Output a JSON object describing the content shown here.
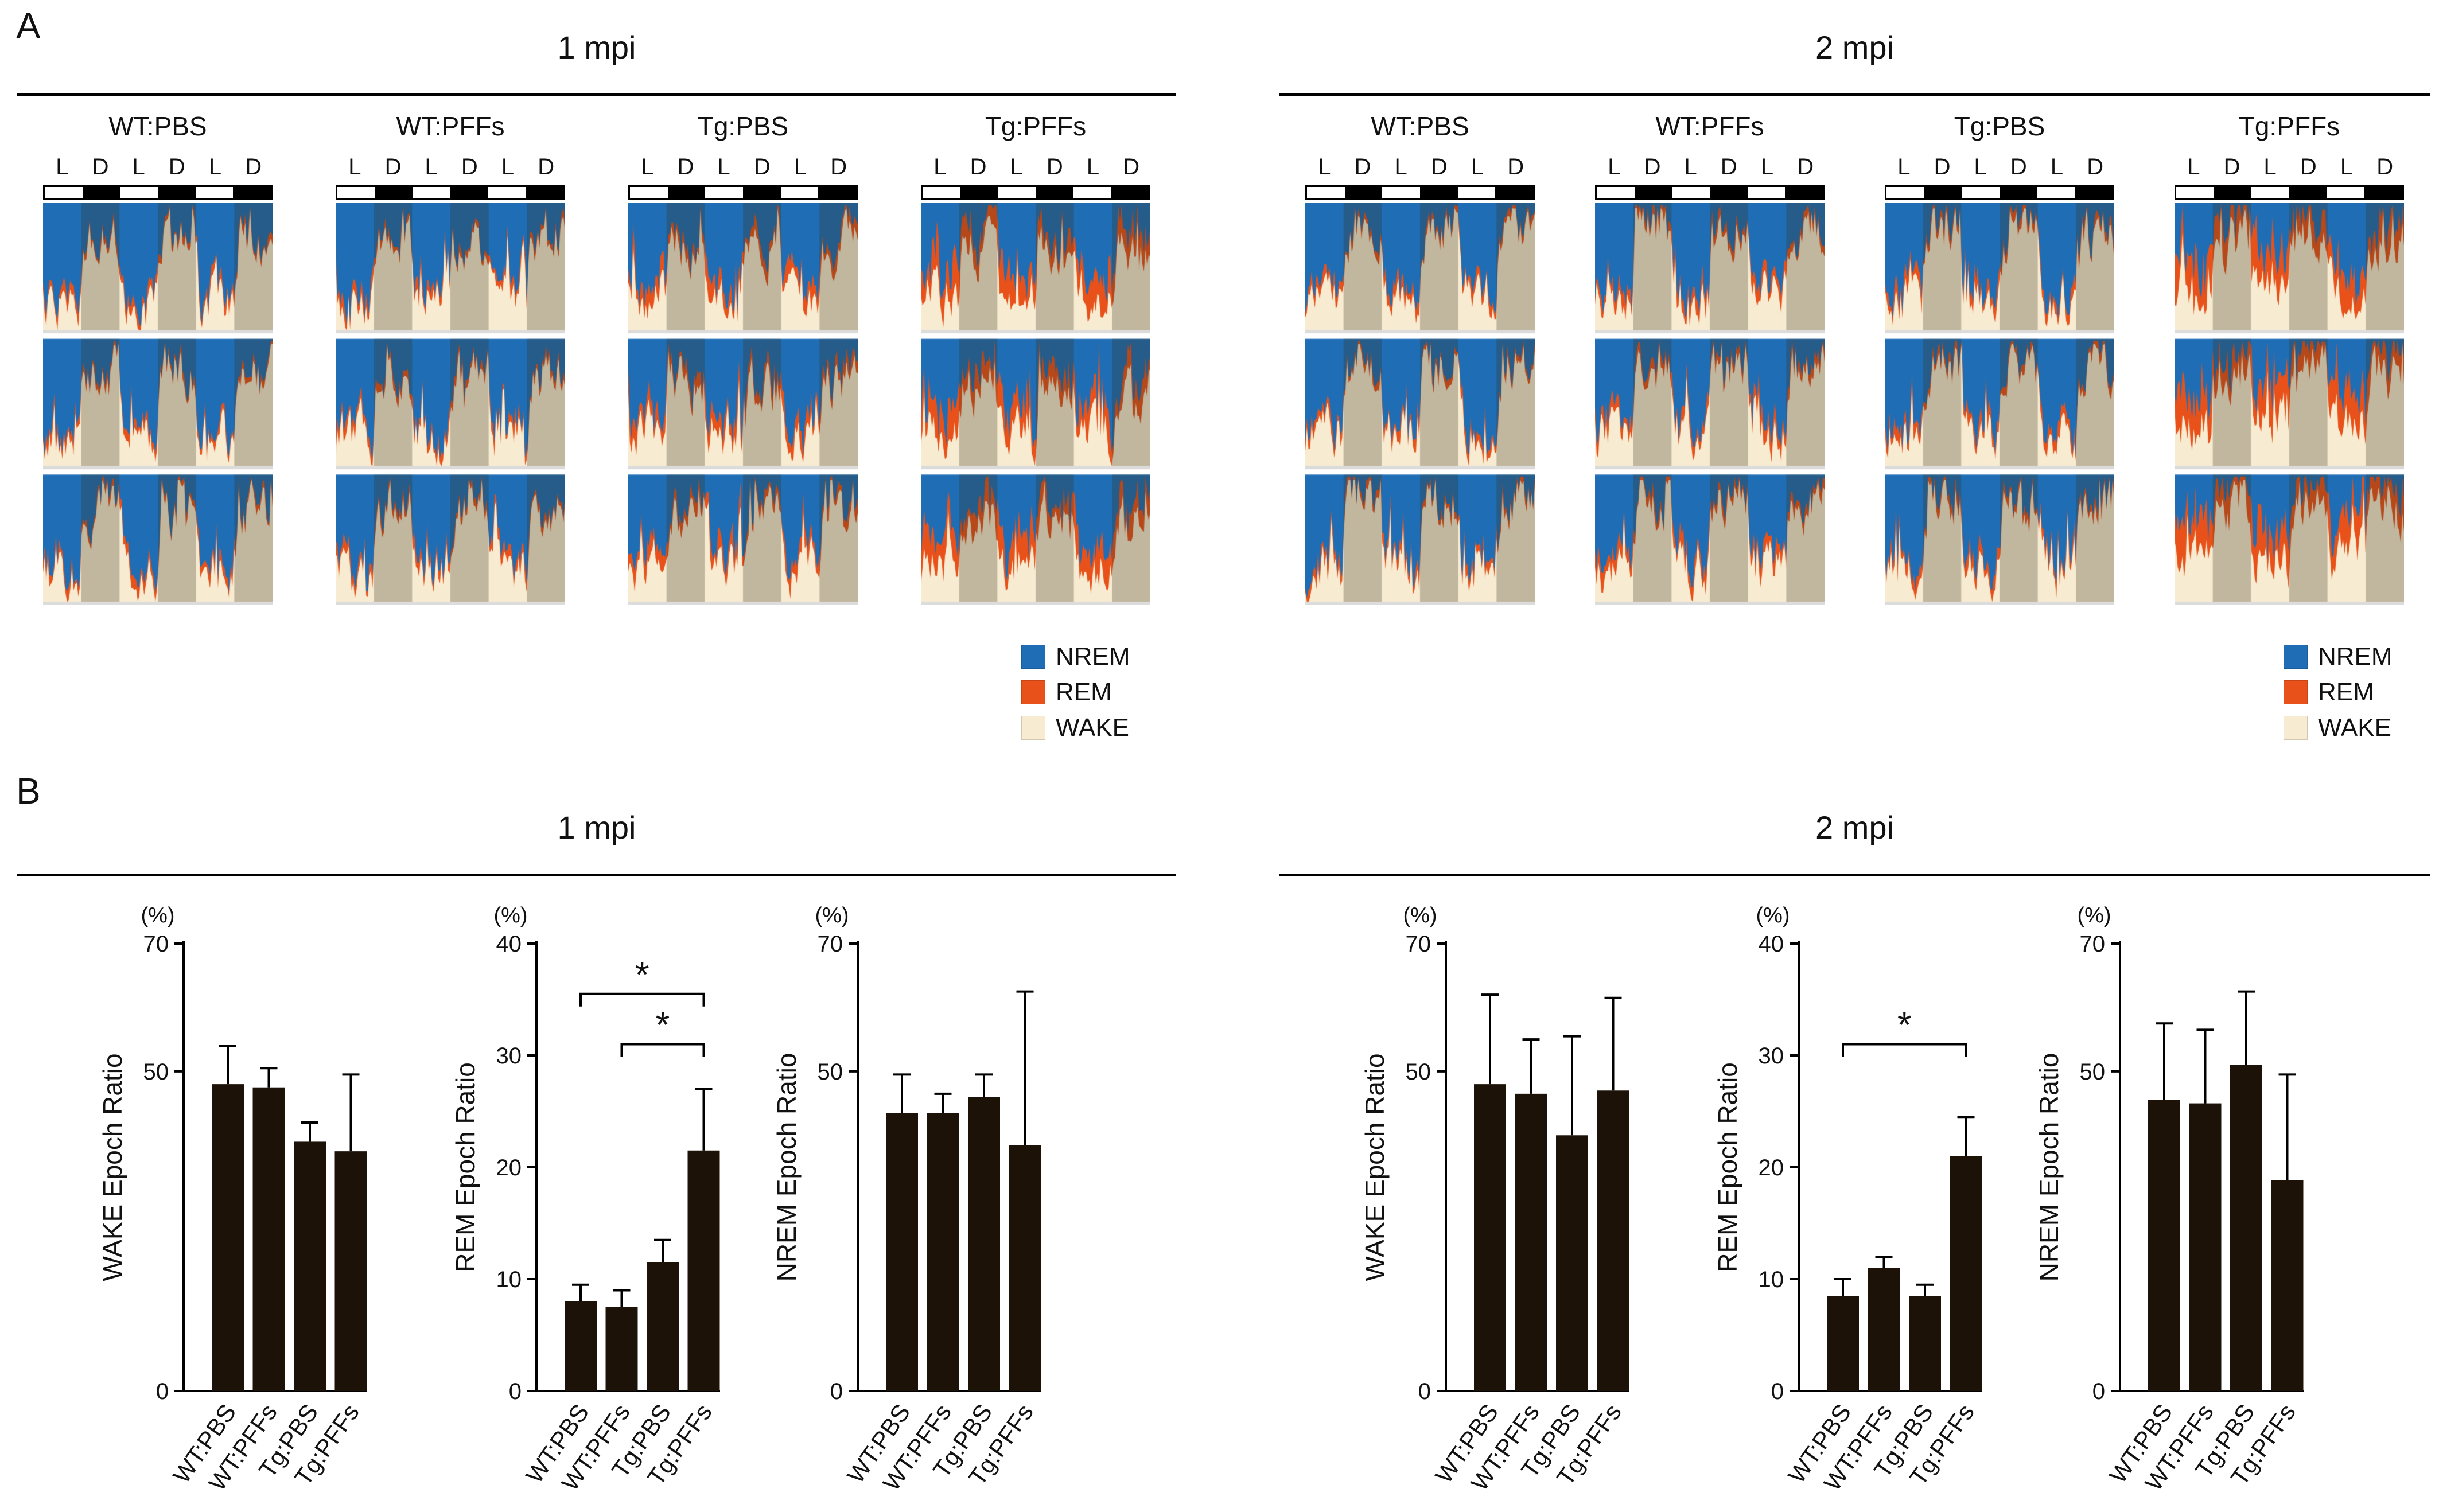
{
  "figure": {
    "panel_a_label": "A",
    "panel_b_label": "B",
    "sections": [
      "1 mpi",
      "2 mpi"
    ],
    "groups": [
      "WT:PBS",
      "WT:PFFs",
      "Tg:PBS",
      "Tg:PFFs"
    ],
    "light_dark_labels": [
      "L",
      "D",
      "L",
      "D",
      "L",
      "D"
    ],
    "legend": [
      {
        "label": "NREM",
        "color": "#1f6eb5"
      },
      {
        "label": "REM",
        "color": "#e8521a"
      },
      {
        "label": "WAKE",
        "color": "#f7ecd2"
      }
    ]
  },
  "colors": {
    "nrem": "#1f6eb5",
    "rem": "#e8521a",
    "wake": "#f7ecd2",
    "bar": "#1d1208",
    "dark_band_overlay": "rgba(55,45,30,0.28)",
    "row_baseline": "#dcdcdc"
  },
  "chart_data": [
    {
      "id": "hypnograms-1mpi",
      "panel": "A",
      "section": "1 mpi",
      "type": "area",
      "stack_order_bottom_to_top": [
        "WAKE",
        "REM",
        "NREM"
      ],
      "x_axis": "time, 3 days (alternating 12 h light / 12 h dark)",
      "y_axis": "epoch composition (stacked fraction)",
      "rows_per_group": 3,
      "periods": [
        "L",
        "D",
        "L",
        "D",
        "L",
        "D"
      ],
      "groups": [
        {
          "label": "WT:PBS",
          "seed": 11,
          "wake_light": 0.22,
          "wake_dark": 0.74,
          "rem_level": 0.055
        },
        {
          "label": "WT:PFFs",
          "seed": 23,
          "wake_light": 0.25,
          "wake_dark": 0.7,
          "rem_level": 0.06
        },
        {
          "label": "Tg:PBS",
          "seed": 37,
          "wake_light": 0.28,
          "wake_dark": 0.66,
          "rem_level": 0.1
        },
        {
          "label": "Tg:PFFs",
          "seed": 49,
          "wake_light": 0.3,
          "wake_dark": 0.62,
          "rem_level": 0.18
        }
      ]
    },
    {
      "id": "hypnograms-2mpi",
      "panel": "A",
      "section": "2 mpi",
      "type": "area",
      "stack_order_bottom_to_top": [
        "WAKE",
        "REM",
        "NREM"
      ],
      "x_axis": "time, 3 days (alternating 12 h light / 12 h dark)",
      "y_axis": "epoch composition (stacked fraction)",
      "rows_per_group": 3,
      "periods": [
        "L",
        "D",
        "L",
        "D",
        "L",
        "D"
      ],
      "groups": [
        {
          "label": "WT:PBS",
          "seed": 61,
          "wake_light": 0.25,
          "wake_dark": 0.8,
          "rem_level": 0.06
        },
        {
          "label": "WT:PFFs",
          "seed": 73,
          "wake_light": 0.27,
          "wake_dark": 0.78,
          "rem_level": 0.08
        },
        {
          "label": "Tg:PBS",
          "seed": 85,
          "wake_light": 0.26,
          "wake_dark": 0.76,
          "rem_level": 0.07
        },
        {
          "label": "Tg:PFFs",
          "seed": 97,
          "wake_light": 0.34,
          "wake_dark": 0.72,
          "rem_level": 0.22
        }
      ]
    },
    {
      "id": "wake-epoch-ratio-1mpi",
      "panel": "B",
      "section": "1 mpi",
      "type": "bar",
      "ylabel": "WAKE Epoch Ratio",
      "unit": "(%)",
      "categories": [
        "WT:PBS",
        "WT:PFFs",
        "Tg:PBS",
        "Tg:PFFs"
      ],
      "values": [
        48,
        47.5,
        39,
        37.5
      ],
      "errors_upper": [
        6,
        3,
        3,
        12
      ],
      "ylim": [
        0,
        70
      ],
      "yticks": [
        0,
        50,
        70
      ],
      "significance": []
    },
    {
      "id": "rem-epoch-ratio-1mpi",
      "panel": "B",
      "section": "1 mpi",
      "type": "bar",
      "ylabel": "REM Epoch Ratio",
      "unit": "(%)",
      "categories": [
        "WT:PBS",
        "WT:PFFs",
        "Tg:PBS",
        "Tg:PFFs"
      ],
      "values": [
        8,
        7.5,
        11.5,
        21.5
      ],
      "errors_upper": [
        1.5,
        1.5,
        2,
        5.5
      ],
      "ylim": [
        0,
        40
      ],
      "yticks": [
        0,
        10,
        20,
        30,
        40
      ],
      "significance": [
        {
          "from": 0,
          "to": 3,
          "label": "*",
          "y": 35.5
        },
        {
          "from": 1,
          "to": 3,
          "label": "*",
          "y": 31
        }
      ]
    },
    {
      "id": "nrem-epoch-ratio-1mpi",
      "panel": "B",
      "section": "1 mpi",
      "type": "bar",
      "ylabel": "NREM Epoch Ratio",
      "unit": "(%)",
      "categories": [
        "WT:PBS",
        "WT:PFFs",
        "Tg:PBS",
        "Tg:PFFs"
      ],
      "values": [
        43.5,
        43.5,
        46,
        38.5
      ],
      "errors_upper": [
        6,
        3,
        3.5,
        24
      ],
      "ylim": [
        0,
        70
      ],
      "yticks": [
        0,
        50,
        70
      ],
      "significance": []
    },
    {
      "id": "wake-epoch-ratio-2mpi",
      "panel": "B",
      "section": "2 mpi",
      "type": "bar",
      "ylabel": "WAKE Epoch Ratio",
      "unit": "(%)",
      "categories": [
        "WT:PBS",
        "WT:PFFs",
        "Tg:PBS",
        "Tg:PFFs"
      ],
      "values": [
        48,
        46.5,
        40,
        47
      ],
      "errors_upper": [
        14,
        8.5,
        15.5,
        14.5
      ],
      "ylim": [
        0,
        70
      ],
      "yticks": [
        0,
        50,
        70
      ],
      "significance": []
    },
    {
      "id": "rem-epoch-ratio-2mpi",
      "panel": "B",
      "section": "2 mpi",
      "type": "bar",
      "ylabel": "REM Epoch Ratio",
      "unit": "(%)",
      "categories": [
        "WT:PBS",
        "WT:PFFs",
        "Tg:PBS",
        "Tg:PFFs"
      ],
      "values": [
        8.5,
        11,
        8.5,
        21
      ],
      "errors_upper": [
        1.5,
        1,
        1,
        3.5
      ],
      "ylim": [
        0,
        40
      ],
      "yticks": [
        0,
        10,
        20,
        30,
        40
      ],
      "significance": [
        {
          "from": 0,
          "to": 3,
          "label": "*",
          "y": 31
        }
      ]
    },
    {
      "id": "nrem-epoch-ratio-2mpi",
      "panel": "B",
      "section": "2 mpi",
      "type": "bar",
      "ylabel": "NREM Epoch Ratio",
      "unit": "(%)",
      "categories": [
        "WT:PBS",
        "WT:PFFs",
        "Tg:PBS",
        "Tg:PFFs"
      ],
      "values": [
        45.5,
        45,
        51,
        33
      ],
      "errors_upper": [
        12,
        11.5,
        11.5,
        16.5
      ],
      "ylim": [
        0,
        70
      ],
      "yticks": [
        0,
        50,
        70
      ],
      "significance": []
    }
  ]
}
